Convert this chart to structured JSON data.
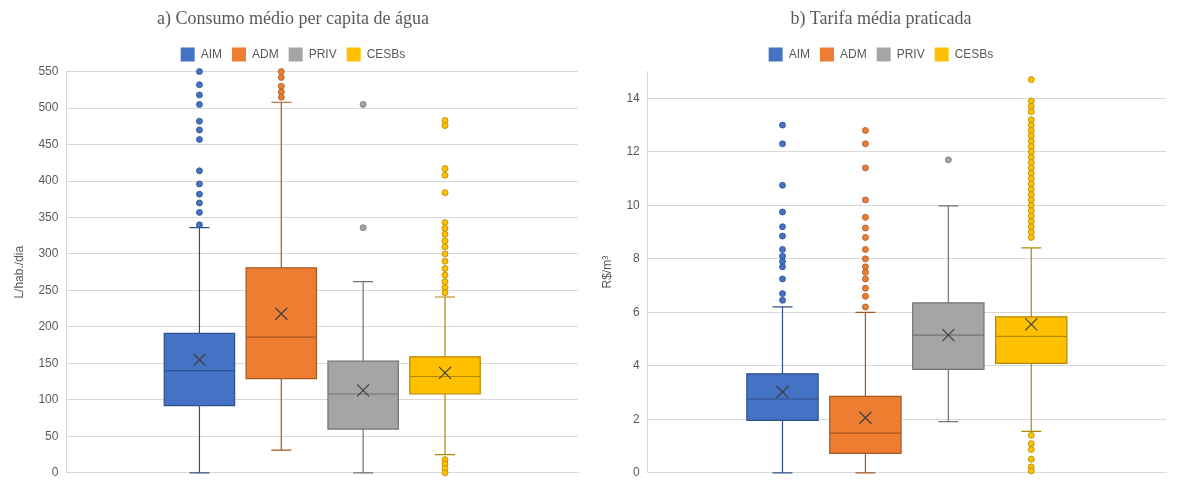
{
  "chart_data": [
    {
      "type": "box",
      "title": "a) Consumo médio per capita de água",
      "ylabel": "L/hab./dia",
      "categories": [
        null
      ],
      "legend": "top",
      "grid": "y",
      "tick_labels": "y",
      "ylim": [
        0,
        550
      ],
      "yticks": [
        0,
        50,
        100,
        150,
        200,
        250,
        300,
        350,
        400,
        450,
        500,
        550
      ],
      "series": [
        {
          "name": "AIM",
          "color": "#4472c4",
          "boxes": [
            {
              "low": 0,
              "q1": 92,
              "median": 140,
              "q3": 191,
              "high": 336,
              "mean": 155,
              "outliers": [
                550,
                532,
                518,
                505,
                482,
                470,
                457,
                414,
                396,
                382,
                370,
                357,
                340
              ]
            }
          ]
        },
        {
          "name": "ADM",
          "color": "#ed7d31",
          "boxes": [
            {
              "low": 31,
              "q1": 129,
              "median": 186,
              "q3": 281,
              "high": 508,
              "mean": 218,
              "outliers": [
                550,
                542,
                530,
                522,
                515
              ]
            }
          ]
        },
        {
          "name": "PRIV",
          "color": "#a5a5a5",
          "boxes": [
            {
              "low": 0,
              "q1": 60,
              "median": 108,
              "q3": 153,
              "high": 262,
              "mean": 113,
              "outliers": [
                505,
                336
              ]
            }
          ]
        },
        {
          "name": "CESBs",
          "color": "#ffc000",
          "boxes": [
            {
              "low": 25,
              "q1": 108,
              "median": 132,
              "q3": 159,
              "high": 241,
              "mean": 137,
              "outliers": [
                483,
                476,
                417,
                408,
                384,
                343,
                335,
                327,
                318,
                310,
                300,
                290,
                280,
                271,
                262,
                254,
                247,
                18,
                12,
                6,
                0
              ]
            }
          ]
        }
      ]
    },
    {
      "type": "box",
      "title": "b) Tarifa média praticada",
      "ylabel": "R$/m³",
      "categories": [
        null
      ],
      "legend": "top",
      "grid": "y",
      "tick_labels": "y",
      "ylim": [
        0,
        15
      ],
      "yticks": [
        0,
        2,
        4,
        6,
        8,
        10,
        12,
        14
      ],
      "series": [
        {
          "name": "AIM",
          "color": "#4472c4",
          "boxes": [
            {
              "low": 0,
              "q1": 1.96,
              "median": 2.76,
              "q3": 3.7,
              "high": 6.2,
              "mean": 3.02,
              "outliers": [
                13,
                12.3,
                10.75,
                9.75,
                9.2,
                8.85,
                8.35,
                8.1,
                7.9,
                7.7,
                7.25,
                6.7,
                6.45
              ]
            }
          ]
        },
        {
          "name": "ADM",
          "color": "#ed7d31",
          "boxes": [
            {
              "low": 0,
              "q1": 0.73,
              "median": 1.48,
              "q3": 2.86,
              "high": 6,
              "mean": 2.06,
              "outliers": [
                12.8,
                12.3,
                11.4,
                10.2,
                9.55,
                9.15,
                8.8,
                8.35,
                8,
                7.7,
                7.5,
                7.25,
                6.9,
                6.6,
                6.2
              ]
            }
          ]
        },
        {
          "name": "PRIV",
          "color": "#a5a5a5",
          "boxes": [
            {
              "low": 1.91,
              "q1": 3.87,
              "median": 5.15,
              "q3": 6.35,
              "high": 9.98,
              "mean": 5.15,
              "outliers": [
                11.7
              ]
            }
          ]
        },
        {
          "name": "CESBs",
          "color": "#ffc000",
          "boxes": [
            {
              "low": 1.55,
              "q1": 4.09,
              "median": 5.1,
              "q3": 5.83,
              "high": 8.41,
              "mean": 5.55,
              "outliers": [
                14.7,
                13.9,
                13.7,
                13.5,
                13.2,
                13,
                12.8,
                12.6,
                12.4,
                12.2,
                12,
                11.8,
                11.6,
                11.4,
                11.2,
                11,
                10.8,
                10.6,
                10.4,
                10.2,
                10,
                9.8,
                9.6,
                9.4,
                9.2,
                9,
                8.8,
                1.4,
                1.09,
                0.87,
                0.51,
                0.22,
                0.07
              ]
            }
          ]
        }
      ]
    }
  ]
}
